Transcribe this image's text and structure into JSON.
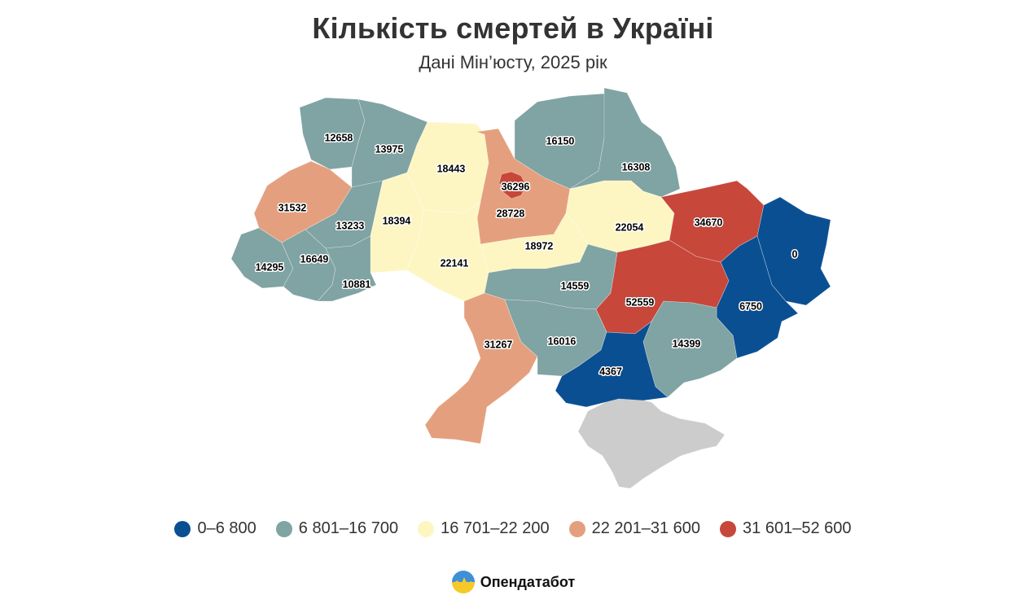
{
  "header": {
    "title": "Кількість смертей в Україні",
    "subtitle": "Дані Мін’юсту, 2025 рік"
  },
  "colors": {
    "class_0": "#0b4f93",
    "class_1": "#80a3a3",
    "class_2": "#fdf6c3",
    "class_3": "#e4a07e",
    "class_4": "#c7473b",
    "no_data": "#cccccc"
  },
  "legend": [
    {
      "label": "0–6 800",
      "color": "#0b4f93"
    },
    {
      "label": "6 801–16 700",
      "color": "#80a3a3"
    },
    {
      "label": "16 701–22 200",
      "color": "#fdf6c3"
    },
    {
      "label": "22 201–31 600",
      "color": "#e4a07e"
    },
    {
      "label": "31 601–52 600",
      "color": "#c7473b"
    }
  ],
  "regions": [
    {
      "value": "12658"
    },
    {
      "value": "13975"
    },
    {
      "value": "18443"
    },
    {
      "value": "36296"
    },
    {
      "value": "16150"
    },
    {
      "value": "16308"
    },
    {
      "value": "31532"
    },
    {
      "value": "13233"
    },
    {
      "value": "18394"
    },
    {
      "value": "28728"
    },
    {
      "value": "22054"
    },
    {
      "value": "34670"
    },
    {
      "value": "14295"
    },
    {
      "value": "16649"
    },
    {
      "value": "22141"
    },
    {
      "value": "18972"
    },
    {
      "value": "0"
    },
    {
      "value": "10881"
    },
    {
      "value": "14559"
    },
    {
      "value": "52559"
    },
    {
      "value": "6750"
    },
    {
      "value": "31267"
    },
    {
      "value": "16016"
    },
    {
      "value": "14399"
    },
    {
      "value": "4367"
    }
  ],
  "brand": {
    "name": "Опендатабот",
    "logo_icon": "opendatabot-logo-icon"
  }
}
